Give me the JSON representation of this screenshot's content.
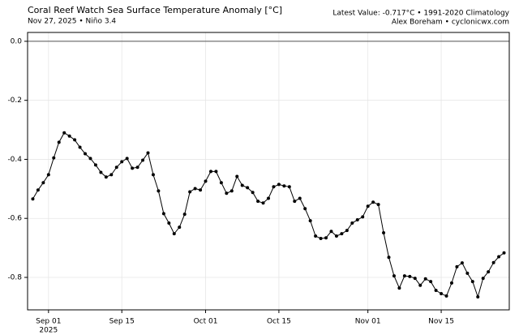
{
  "chart_data": {
    "type": "line",
    "title": "Coral Reef Watch Sea Surface Temperature Anomaly [°C]",
    "subtitle": "Nov 27, 2025 • Niño 3.4",
    "info_line_1": "Latest Value: -0.717°C • 1991-2020 Climatology",
    "info_line_2": "Alex Boreham • cyclonicwx.com",
    "x": [
      "2025-08-29",
      "2025-08-30",
      "2025-08-31",
      "2025-09-01",
      "2025-09-02",
      "2025-09-03",
      "2025-09-04",
      "2025-09-05",
      "2025-09-06",
      "2025-09-07",
      "2025-09-08",
      "2025-09-09",
      "2025-09-10",
      "2025-09-11",
      "2025-09-12",
      "2025-09-13",
      "2025-09-14",
      "2025-09-15",
      "2025-09-16",
      "2025-09-17",
      "2025-09-18",
      "2025-09-19",
      "2025-09-20",
      "2025-09-21",
      "2025-09-22",
      "2025-09-23",
      "2025-09-24",
      "2025-09-25",
      "2025-09-26",
      "2025-09-27",
      "2025-09-28",
      "2025-09-29",
      "2025-09-30",
      "2025-10-01",
      "2025-10-02",
      "2025-10-03",
      "2025-10-04",
      "2025-10-05",
      "2025-10-06",
      "2025-10-07",
      "2025-10-08",
      "2025-10-09",
      "2025-10-10",
      "2025-10-11",
      "2025-10-12",
      "2025-10-13",
      "2025-10-14",
      "2025-10-15",
      "2025-10-16",
      "2025-10-17",
      "2025-10-18",
      "2025-10-19",
      "2025-10-20",
      "2025-10-21",
      "2025-10-22",
      "2025-10-23",
      "2025-10-24",
      "2025-10-25",
      "2025-10-26",
      "2025-10-27",
      "2025-10-28",
      "2025-10-29",
      "2025-10-30",
      "2025-10-31",
      "2025-11-01",
      "2025-11-02",
      "2025-11-03",
      "2025-11-04",
      "2025-11-05",
      "2025-11-06",
      "2025-11-07",
      "2025-11-08",
      "2025-11-09",
      "2025-11-10",
      "2025-11-11",
      "2025-11-12",
      "2025-11-13",
      "2025-11-14",
      "2025-11-15",
      "2025-11-16",
      "2025-11-17",
      "2025-11-18",
      "2025-11-19",
      "2025-11-20",
      "2025-11-21",
      "2025-11-22",
      "2025-11-23",
      "2025-11-24",
      "2025-11-25",
      "2025-11-26",
      "2025-11-27"
    ],
    "values": [
      -0.534,
      -0.504,
      -0.479,
      -0.452,
      -0.395,
      -0.342,
      -0.31,
      -0.321,
      -0.334,
      -0.359,
      -0.381,
      -0.397,
      -0.419,
      -0.444,
      -0.46,
      -0.452,
      -0.427,
      -0.408,
      -0.397,
      -0.43,
      -0.427,
      -0.403,
      -0.378,
      -0.452,
      -0.507,
      -0.584,
      -0.616,
      -0.652,
      -0.63,
      -0.586,
      -0.51,
      -0.499,
      -0.504,
      -0.474,
      -0.441,
      -0.441,
      -0.479,
      -0.515,
      -0.507,
      -0.458,
      -0.488,
      -0.496,
      -0.512,
      -0.542,
      -0.548,
      -0.532,
      -0.493,
      -0.485,
      -0.49,
      -0.493,
      -0.542,
      -0.532,
      -0.567,
      -0.608,
      -0.66,
      -0.668,
      -0.666,
      -0.644,
      -0.66,
      -0.652,
      -0.641,
      -0.616,
      -0.605,
      -0.595,
      -0.559,
      -0.545,
      -0.553,
      -0.649,
      -0.732,
      -0.795,
      -0.836,
      -0.795,
      -0.797,
      -0.803,
      -0.827,
      -0.805,
      -0.814,
      -0.844,
      -0.855,
      -0.863,
      -0.819,
      -0.764,
      -0.751,
      -0.786,
      -0.814,
      -0.866,
      -0.803,
      -0.781,
      -0.75,
      -0.73,
      -0.717
    ],
    "color": "#000000",
    "xlim": [
      "2025-08-28",
      "2025-11-28"
    ],
    "xticks": [
      {
        "value": "2025-09-01",
        "label": "Sep 01"
      },
      {
        "value": "2025-09-15",
        "label": "Sep 15"
      },
      {
        "value": "2025-10-01",
        "label": "Oct 01"
      },
      {
        "value": "2025-10-15",
        "label": "Oct 15"
      },
      {
        "value": "2025-11-01",
        "label": "Nov 01"
      },
      {
        "value": "2025-11-15",
        "label": "Nov 15"
      }
    ],
    "xtick_year": "2025",
    "ylim": [
      -0.91,
      0.03
    ],
    "yticks": [
      {
        "value": 0,
        "label": "0.0"
      },
      -0.2,
      -0.4,
      -0.6,
      -0.8
    ],
    "reference_line": 0,
    "grid": true
  }
}
